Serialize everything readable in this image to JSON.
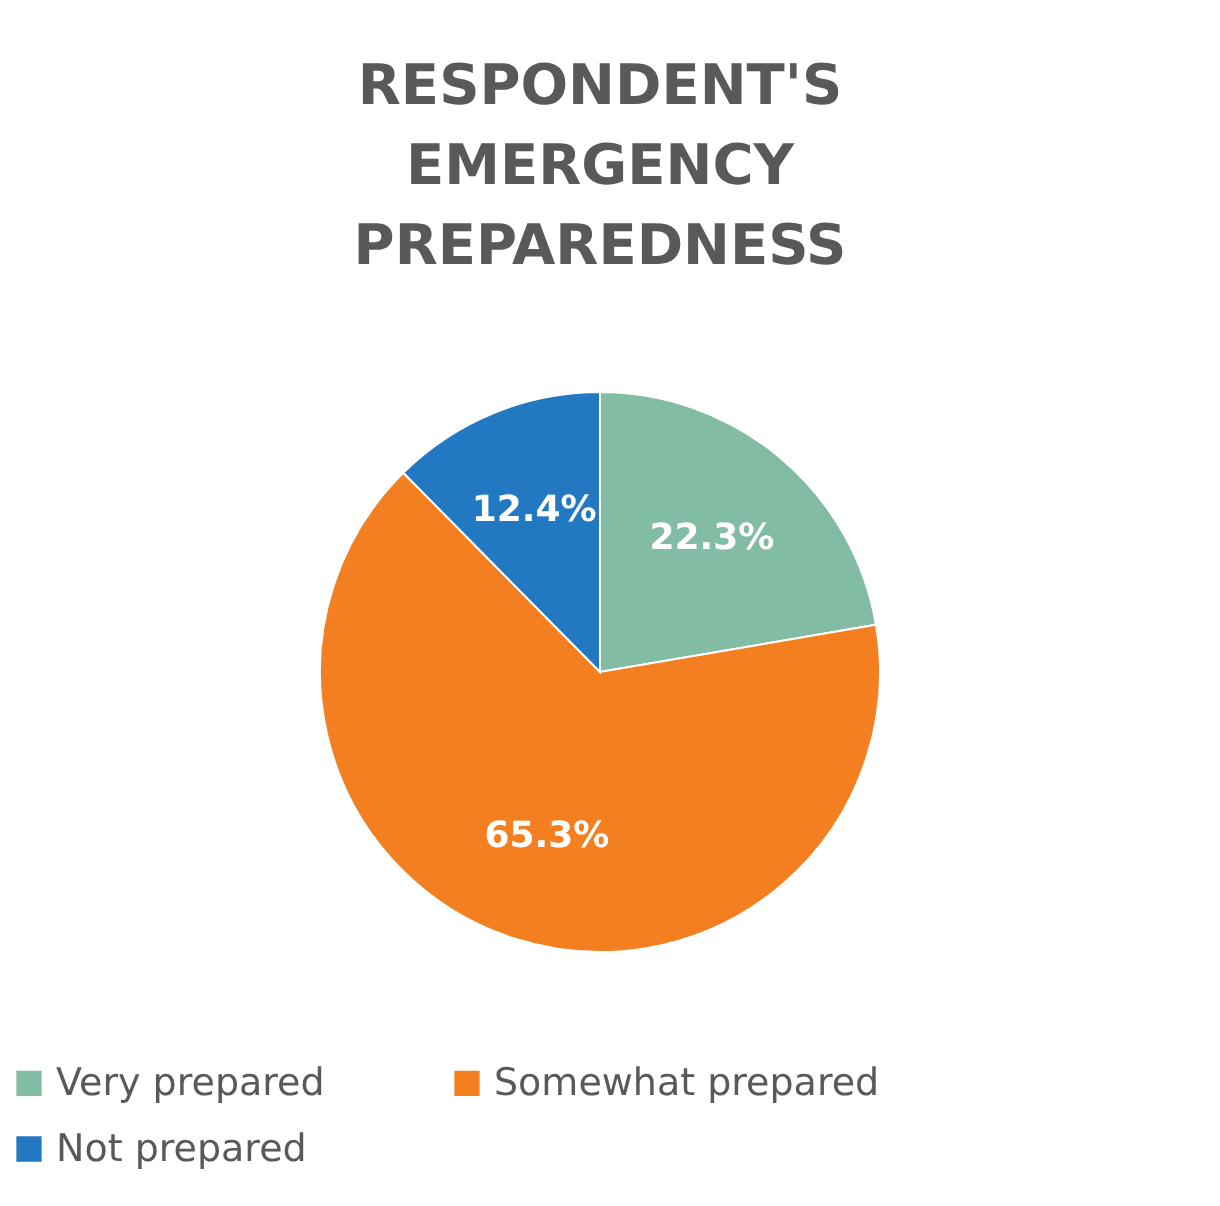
{
  "chart_data": {
    "type": "pie",
    "title": "RESPONDENT'S\nEMERGENCY\nPREPAREDNESS",
    "categories": [
      "Very prepared",
      "Somewhat prepared",
      "Not prepared"
    ],
    "values": [
      22.3,
      65.3,
      12.4
    ],
    "value_labels": [
      "22.3%",
      "65.3%",
      "12.4%"
    ],
    "colors": [
      "#82bca4",
      "#f37f21",
      "#2278c1"
    ],
    "legend": "bottom"
  }
}
